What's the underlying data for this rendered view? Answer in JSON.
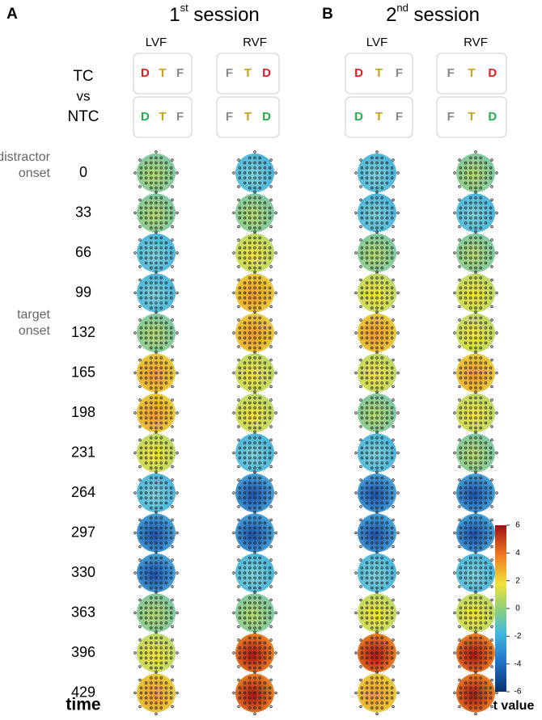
{
  "panels": [
    {
      "letter": "A",
      "title": {
        "num": "1",
        "sup": "st",
        "rest": " session"
      },
      "columns": [
        "LVF",
        "RVF"
      ],
      "boxes": {
        "tc": [
          [
            "D",
            "T",
            "F"
          ],
          [
            "F",
            "T",
            "D"
          ]
        ],
        "ntc": [
          [
            "D",
            "T",
            "F"
          ],
          [
            "F",
            "T",
            "D"
          ]
        ]
      }
    },
    {
      "letter": "B",
      "title": {
        "num": "2",
        "sup": "nd",
        "rest": " session"
      },
      "columns": [
        "LVF",
        "RVF"
      ],
      "boxes": {
        "tc": [
          [
            "D",
            "T",
            "F"
          ],
          [
            "F",
            "T",
            "D"
          ]
        ],
        "ntc": [
          [
            "D",
            "T",
            "F"
          ],
          [
            "F",
            "T",
            "D"
          ]
        ]
      }
    }
  ],
  "conditions": {
    "tc": "TC",
    "vs": "vs",
    "ntc": "NTC"
  },
  "events": {
    "distractor": "distractor\nonset",
    "target": "target\nonset"
  },
  "times": [
    "0",
    "33",
    "66",
    "99",
    "132",
    "165",
    "198",
    "231",
    "264",
    "297",
    "330",
    "363",
    "396",
    "429"
  ],
  "time_label": "time",
  "colorbar": {
    "label": "t value",
    "ticks": [
      6,
      4,
      2,
      0,
      -2,
      -4,
      -6
    ]
  }
}
